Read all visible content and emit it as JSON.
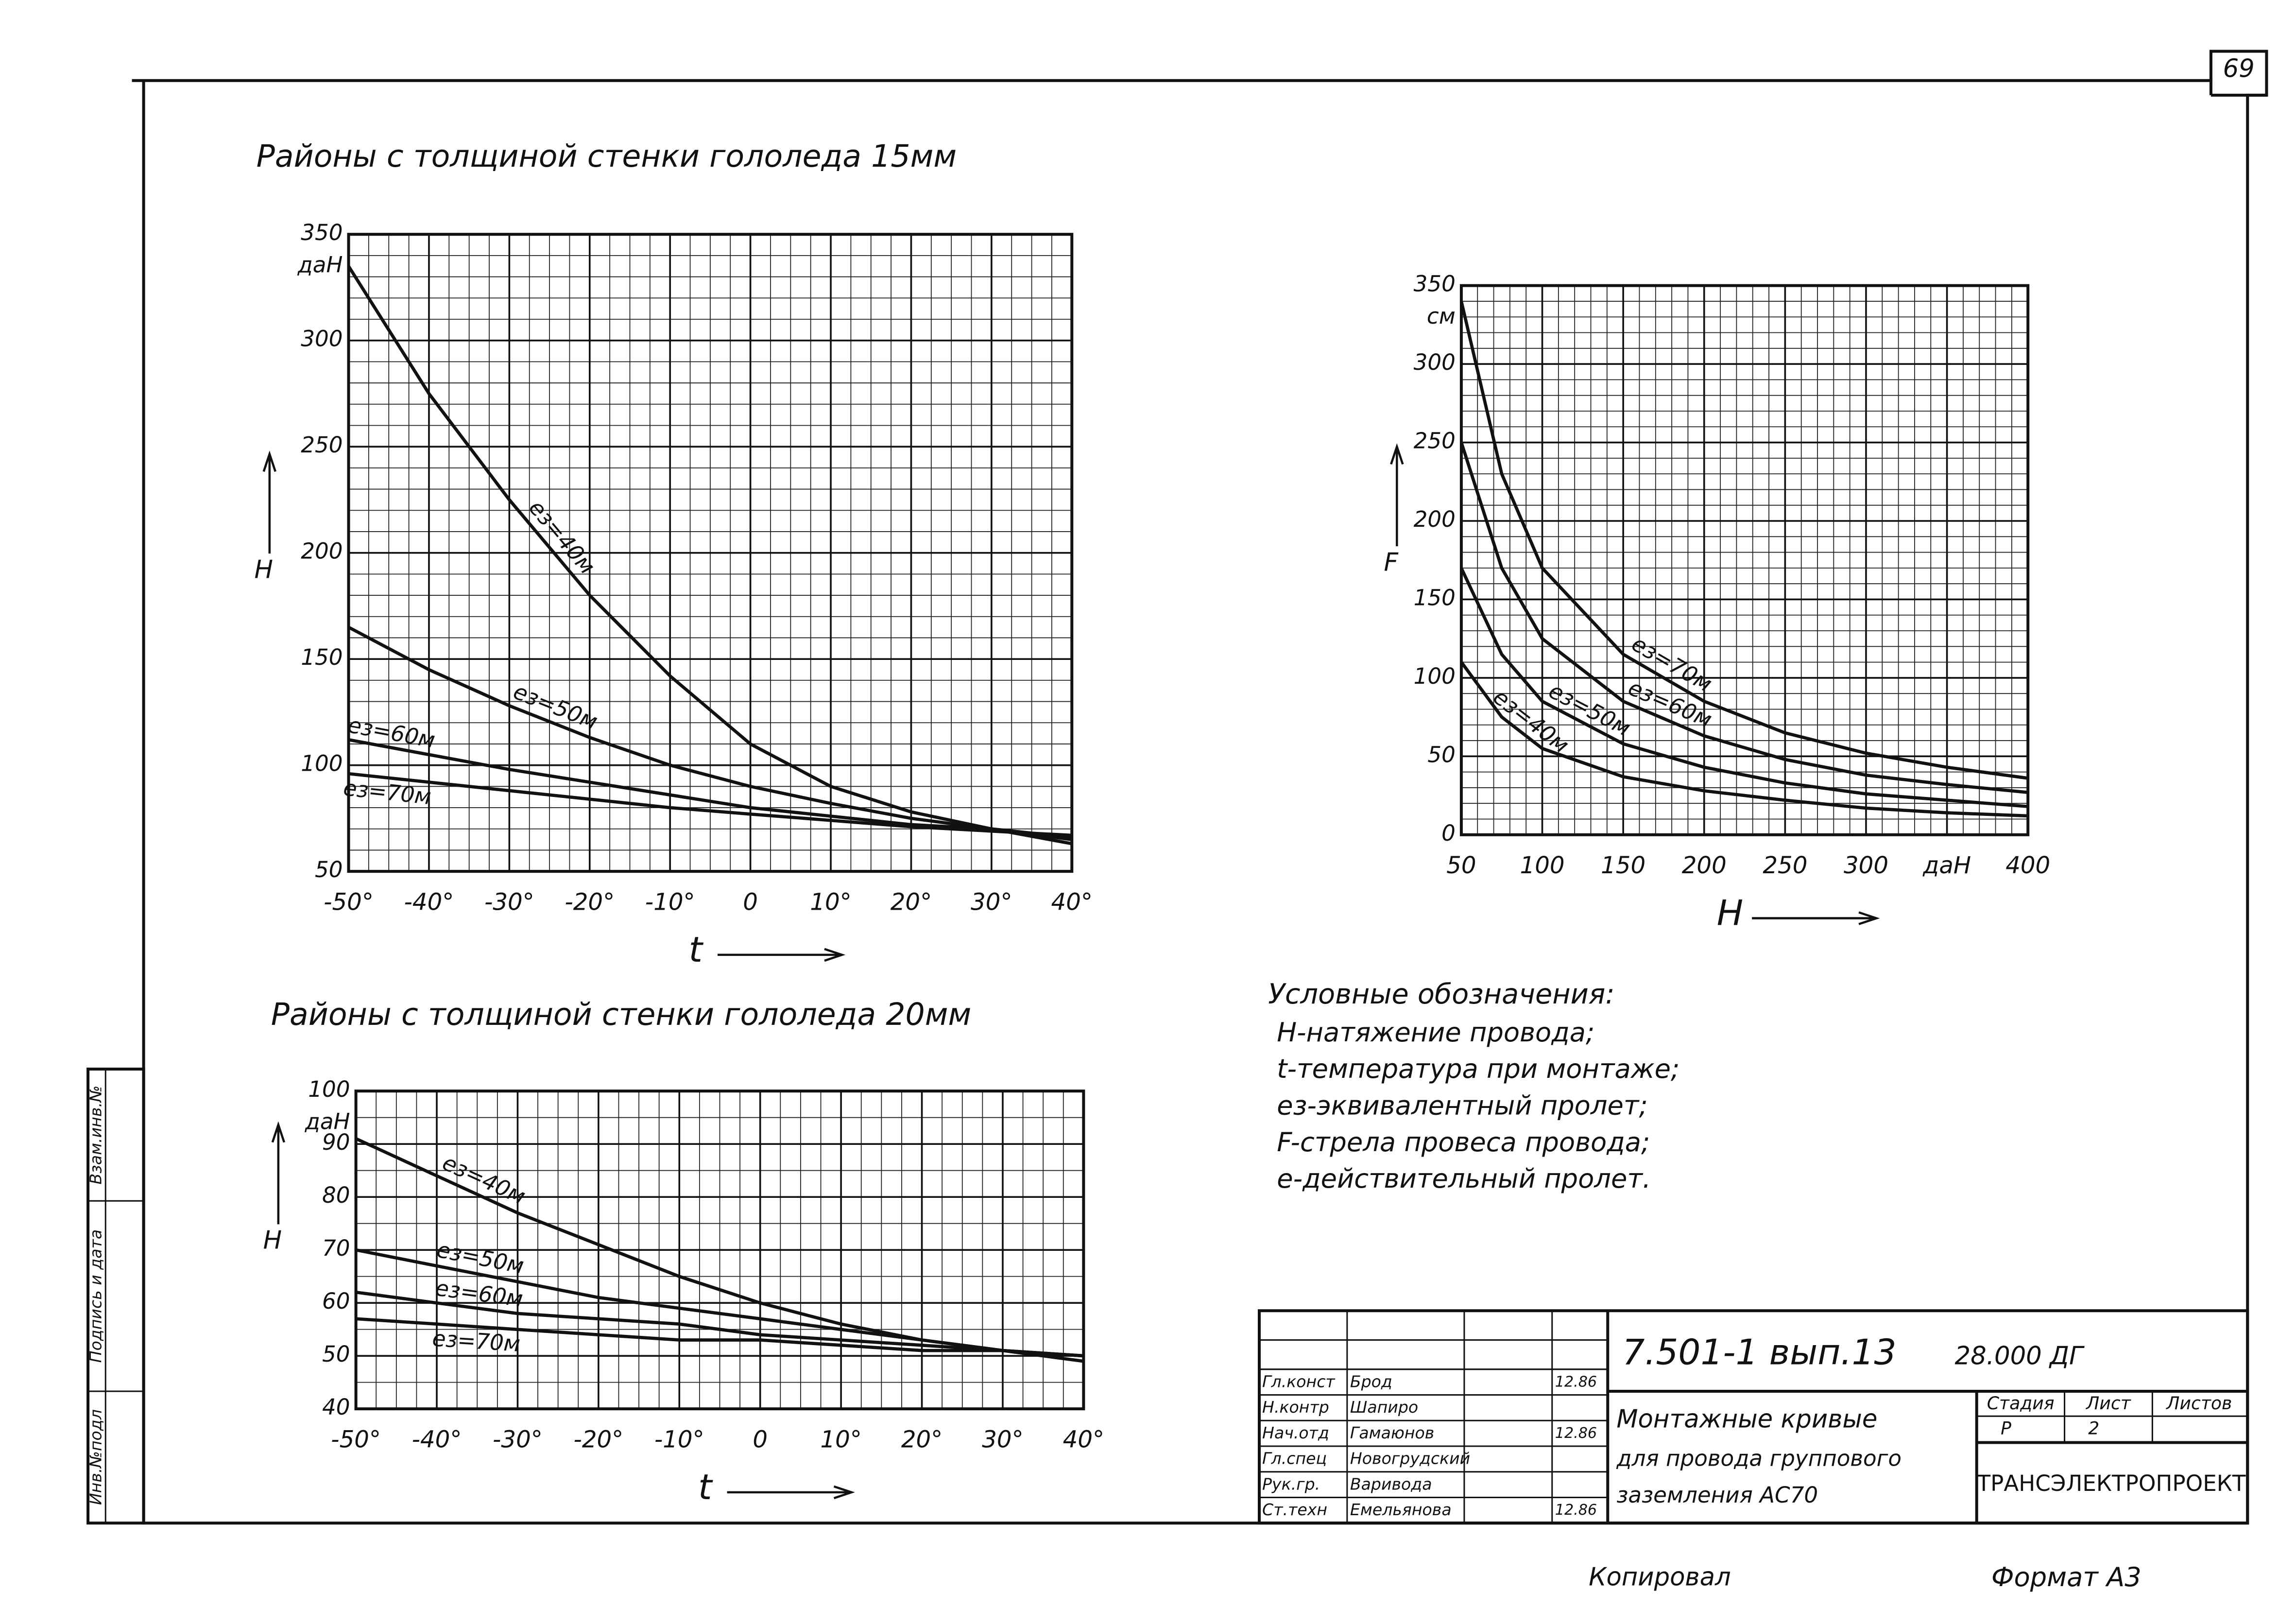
{
  "page_number": "69",
  "chart_data": [
    {
      "type": "line",
      "title": "Районы с толщиной стенки гололеда 15мм",
      "x": [
        -50,
        -40,
        -30,
        -20,
        -10,
        0,
        10,
        20,
        30,
        40
      ],
      "xlim": [
        -50,
        40
      ],
      "xticks": [
        {
          "value": -50,
          "label": "-50°"
        },
        {
          "value": -40,
          "label": "-40°"
        },
        {
          "value": -30,
          "label": "-30°"
        },
        {
          "value": -20,
          "label": "-20°"
        },
        {
          "value": -10,
          "label": "-10°"
        },
        {
          "value": 0,
          "label": "0"
        },
        {
          "value": 10,
          "label": "10°"
        },
        {
          "value": 20,
          "label": "20°"
        },
        {
          "value": 30,
          "label": "30°"
        },
        {
          "value": 40,
          "label": "40°"
        }
      ],
      "ylim": [
        50,
        350
      ],
      "yticks": [
        50,
        100,
        150,
        200,
        250,
        300,
        350
      ],
      "y_unit": "даН",
      "xlabel": "t",
      "ylabel": "H",
      "grid": true,
      "x_minor": 4,
      "y_minor": 5,
      "series": [
        {
          "name": "eз=40м",
          "color": "#111",
          "values": [
            335,
            275,
            225,
            180,
            142,
            110,
            90,
            78,
            70,
            63
          ]
        },
        {
          "name": "eз=50м",
          "color": "#111",
          "values": [
            165,
            145,
            128,
            113,
            100,
            90,
            82,
            75,
            70,
            65
          ]
        },
        {
          "name": "eз=60м",
          "color": "#111",
          "values": [
            112,
            105,
            98,
            92,
            86,
            80,
            76,
            72,
            70,
            66
          ]
        },
        {
          "name": "eз=70м",
          "color": "#111",
          "values": [
            96,
            92,
            88,
            84,
            80,
            77,
            74,
            71,
            69,
            67
          ]
        }
      ]
    },
    {
      "type": "line",
      "x": [
        50,
        75,
        100,
        150,
        200,
        250,
        300,
        350,
        400
      ],
      "xlim": [
        50,
        400
      ],
      "xticks": [
        50,
        100,
        150,
        200,
        250,
        300,
        {
          "value": 350,
          "label": "даН"
        },
        400
      ],
      "ylim": [
        0,
        350
      ],
      "yticks": [
        0,
        50,
        100,
        150,
        200,
        250,
        300,
        350
      ],
      "y_unit": "см",
      "xlabel": "H",
      "ylabel": "F",
      "grid": true,
      "x_minor": 5,
      "y_minor": 5,
      "series": [
        {
          "name": "eз=70м",
          "color": "#111",
          "values": [
            340,
            230,
            170,
            115,
            85,
            65,
            52,
            43,
            36
          ]
        },
        {
          "name": "eз=60м",
          "color": "#111",
          "values": [
            250,
            170,
            125,
            85,
            63,
            48,
            38,
            32,
            27
          ]
        },
        {
          "name": "eз=50м",
          "color": "#111",
          "values": [
            170,
            115,
            85,
            58,
            43,
            33,
            26,
            22,
            18
          ]
        },
        {
          "name": "eз=40м",
          "color": "#111",
          "values": [
            110,
            75,
            55,
            37,
            28,
            22,
            17,
            14,
            12
          ]
        }
      ]
    },
    {
      "type": "line",
      "title": "Районы с толщиной стенки гололеда 20мм",
      "x": [
        -50,
        -40,
        -30,
        -20,
        -10,
        0,
        10,
        20,
        30,
        40
      ],
      "xlim": [
        -50,
        40
      ],
      "xticks": [
        {
          "value": -50,
          "label": "-50°"
        },
        {
          "value": -40,
          "label": "-40°"
        },
        {
          "value": -30,
          "label": "-30°"
        },
        {
          "value": -20,
          "label": "-20°"
        },
        {
          "value": -10,
          "label": "-10°"
        },
        {
          "value": 0,
          "label": "0"
        },
        {
          "value": 10,
          "label": "10°"
        },
        {
          "value": 20,
          "label": "20°"
        },
        {
          "value": 30,
          "label": "30°"
        },
        {
          "value": 40,
          "label": "40°"
        }
      ],
      "ylim": [
        40,
        100
      ],
      "yticks": [
        40,
        50,
        60,
        70,
        80,
        90,
        100
      ],
      "y_unit": "даН",
      "xlabel": "t",
      "ylabel": "H",
      "grid": true,
      "x_minor": 4,
      "y_minor": 2,
      "series": [
        {
          "name": "eз=40м",
          "color": "#111",
          "values": [
            91,
            84,
            77,
            71,
            65,
            60,
            56,
            53,
            51,
            49
          ]
        },
        {
          "name": "eз=50м",
          "color": "#111",
          "values": [
            70,
            67,
            64,
            61,
            59,
            57,
            55,
            53,
            51,
            50
          ]
        },
        {
          "name": "eз=60м",
          "color": "#111",
          "values": [
            62,
            60,
            58,
            57,
            56,
            54,
            53,
            52,
            51,
            50
          ]
        },
        {
          "name": "eз=70м",
          "color": "#111",
          "values": [
            57,
            56,
            55,
            54,
            53,
            53,
            52,
            51,
            51,
            50
          ]
        }
      ]
    }
  ],
  "legend": {
    "title": "Условные обозначения:",
    "items": [
      "H-натяжение провода;",
      "t-температура при монтаже;",
      "eз-эквивалентный пролет;",
      "F-стрела провеса провода;",
      "e-действительный пролет."
    ]
  },
  "title_block": {
    "code": "7.501-1 вып.13",
    "sheet_code": "28.000 ДГ",
    "rows": [
      {
        "role": "Гл.конст",
        "name": "Брод",
        "date": "12.86"
      },
      {
        "role": "Н.контр",
        "name": "Шапиро"
      },
      {
        "role": "Нач.отд",
        "name": "Гамаюнов",
        "date": "12.86"
      },
      {
        "role": "Гл.спец",
        "name": "Новогрудский"
      },
      {
        "role": "Рук.гр.",
        "name": "Варивода"
      },
      {
        "role": "Ст.техн",
        "name": "Емельянова",
        "date": "12.86"
      }
    ],
    "title": [
      "Монтажные кривые",
      "для провода группового",
      "заземления АС70"
    ],
    "headers": [
      "Стадия",
      "Лист",
      "Листов"
    ],
    "stage": "Р",
    "sheet": "2",
    "org": "ТРАНСЭЛЕКТРОПРОЕКТ"
  },
  "side_stamp": [
    "Инв.№подл",
    "Подпись и дата",
    "Взам.инв.№"
  ],
  "footer": {
    "copied": "Копировал",
    "format": "Формат А3"
  }
}
